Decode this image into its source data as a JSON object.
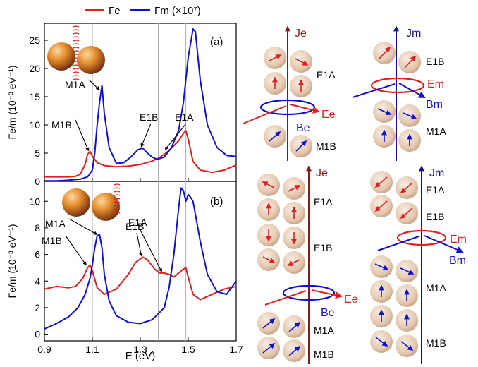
{
  "legend": {
    "series_e": "Γe",
    "series_m": "Γm (×10⁷)"
  },
  "colors": {
    "electric": "#e02020",
    "magnetic": "#1010d0",
    "guide": "#b0b0b0"
  },
  "chart_data": [
    {
      "type": "line",
      "panel": "(a)",
      "ylabel": "Γe/m (10⁻³ eV⁻¹)",
      "xlabel": "",
      "xlim": [
        0.9,
        1.7
      ],
      "ylim": [
        0,
        28
      ],
      "yticks": [
        0,
        5,
        10,
        15,
        20,
        25
      ],
      "xticks": [
        0.9,
        1.1,
        1.3,
        1.5,
        1.7
      ],
      "vlines": [
        1.1,
        1.375,
        1.49
      ],
      "series": [
        {
          "name": "Γe",
          "color": "#e02020",
          "x": [
            0.9,
            0.95,
            1.0,
            1.03,
            1.05,
            1.07,
            1.08,
            1.09,
            1.1,
            1.12,
            1.15,
            1.2,
            1.25,
            1.3,
            1.35,
            1.38,
            1.4,
            1.42,
            1.44,
            1.46,
            1.48,
            1.49,
            1.5,
            1.52,
            1.55,
            1.6,
            1.65,
            1.7
          ],
          "y": [
            0.8,
            0.8,
            0.8,
            0.9,
            1.3,
            3.0,
            4.8,
            5.3,
            4.5,
            3.3,
            2.8,
            2.6,
            2.7,
            3.0,
            3.6,
            4.2,
            4.8,
            5.5,
            6.3,
            7.2,
            8.5,
            9.0,
            7.5,
            3.5,
            2.0,
            1.6,
            2.0,
            2.9
          ]
        },
        {
          "name": "Γm (×10⁷)",
          "color": "#1010d0",
          "x": [
            0.9,
            0.95,
            1.0,
            1.05,
            1.08,
            1.1,
            1.11,
            1.12,
            1.13,
            1.14,
            1.15,
            1.17,
            1.2,
            1.23,
            1.26,
            1.29,
            1.31,
            1.33,
            1.35,
            1.37,
            1.4,
            1.43,
            1.46,
            1.48,
            1.5,
            1.52,
            1.53,
            1.55,
            1.58,
            1.62,
            1.66,
            1.7
          ],
          "y": [
            0.1,
            0.1,
            0.2,
            0.4,
            0.8,
            2.0,
            5.0,
            10.0,
            14.0,
            17.0,
            12.0,
            6.0,
            3.2,
            3.3,
            4.3,
            5.6,
            5.9,
            5.0,
            4.3,
            3.9,
            4.3,
            6.0,
            9.0,
            14.0,
            22.0,
            27.0,
            26.5,
            18.0,
            10.0,
            6.0,
            4.6,
            4.4
          ]
        }
      ],
      "annotations": [
        {
          "label": "M1A",
          "x": 1.135,
          "y": 16.0
        },
        {
          "label": "M1B",
          "x": 1.09,
          "y": 5.2
        },
        {
          "label": "E1B",
          "x": 1.31,
          "y": 5.9
        },
        {
          "label": "E1A",
          "x": 1.41,
          "y": 5.4
        }
      ]
    },
    {
      "type": "line",
      "panel": "(b)",
      "ylabel": "Γe/m (10⁻³ eV⁻¹)",
      "xlabel": "E (eV)",
      "xlim": [
        0.9,
        1.7
      ],
      "ylim": [
        -0.5,
        11.5
      ],
      "yticks": [
        0,
        2,
        4,
        6,
        8,
        10
      ],
      "xticks": [
        0.9,
        1.1,
        1.3,
        1.5,
        1.7
      ],
      "vlines": [
        1.1,
        1.375,
        1.49
      ],
      "series": [
        {
          "name": "Γe",
          "color": "#e02020",
          "x": [
            0.9,
            0.95,
            1.0,
            1.03,
            1.06,
            1.08,
            1.09,
            1.1,
            1.12,
            1.15,
            1.2,
            1.25,
            1.28,
            1.31,
            1.33,
            1.36,
            1.38,
            1.4,
            1.42,
            1.44,
            1.46,
            1.48,
            1.49,
            1.5,
            1.52,
            1.55,
            1.6,
            1.65,
            1.7
          ],
          "y": [
            3.4,
            3.6,
            3.5,
            3.6,
            4.2,
            5.0,
            5.2,
            4.8,
            3.5,
            3.0,
            3.4,
            4.5,
            5.4,
            5.8,
            5.6,
            4.9,
            4.6,
            4.6,
            4.5,
            4.3,
            4.6,
            4.9,
            5.0,
            4.3,
            3.0,
            2.6,
            3.0,
            3.4,
            3.6
          ]
        },
        {
          "name": "Γm (×10⁷)",
          "color": "#1010d0",
          "x": [
            0.9,
            0.95,
            1.0,
            1.04,
            1.07,
            1.09,
            1.1,
            1.11,
            1.12,
            1.13,
            1.14,
            1.15,
            1.17,
            1.2,
            1.25,
            1.3,
            1.35,
            1.4,
            1.42,
            1.44,
            1.46,
            1.47,
            1.48,
            1.49,
            1.5,
            1.51,
            1.52,
            1.53,
            1.55,
            1.58,
            1.62,
            1.66,
            1.7
          ],
          "y": [
            0.4,
            0.8,
            1.3,
            2.0,
            3.0,
            4.2,
            5.2,
            6.5,
            7.4,
            7.5,
            6.5,
            4.5,
            2.5,
            1.4,
            0.9,
            0.8,
            1.1,
            2.0,
            3.5,
            6.0,
            9.5,
            11.0,
            10.8,
            10.0,
            10.5,
            10.3,
            10.0,
            9.0,
            7.0,
            4.5,
            3.2,
            3.0,
            4.0
          ]
        }
      ],
      "annotations": [
        {
          "label": "M1A",
          "x": 1.125,
          "y": 7.4
        },
        {
          "label": "M1B",
          "x": 1.08,
          "y": 5.1
        },
        {
          "label": "E1B",
          "x": 1.31,
          "y": 5.8
        },
        {
          "label": "E1A",
          "x": 1.395,
          "y": 4.6
        }
      ]
    }
  ],
  "schematics": {
    "a_left": {
      "current": "Je",
      "field": "Ee",
      "loop": "Be",
      "modes": [
        "E1A",
        "M1B"
      ]
    },
    "a_right": {
      "current": "Jm",
      "field": "Em",
      "loop": "Bm",
      "modes": [
        "E1B",
        "M1A"
      ]
    },
    "b_left": {
      "current": "Je",
      "field": "Ee",
      "loop": "Be",
      "modes": [
        "E1A",
        "E1B",
        "M1A",
        "M1B"
      ]
    },
    "b_right": {
      "current": "Jm",
      "field": "Em",
      "loop": "Bm",
      "modes": [
        "E1A",
        "E1B",
        "M1A",
        "M1B"
      ]
    }
  }
}
